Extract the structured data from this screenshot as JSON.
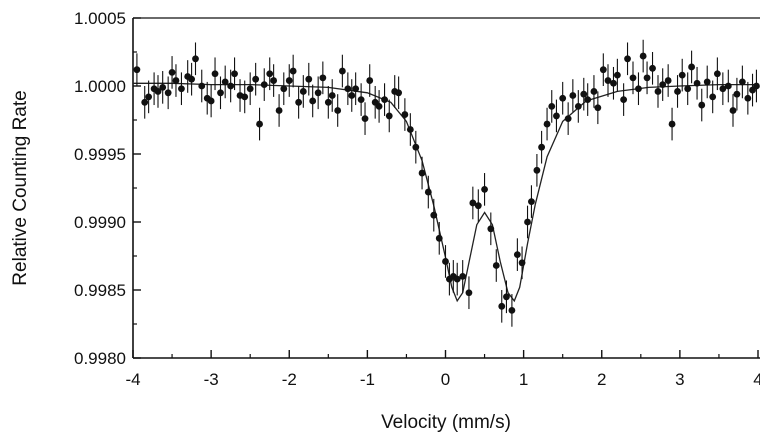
{
  "chart_data": {
    "type": "scatter",
    "xlabel": "Velocity (mm/s)",
    "ylabel": "Relative Counting Rate",
    "xlim": [
      -4,
      4
    ],
    "ylim": [
      0.998,
      1.0005
    ],
    "x_ticks": [
      -4,
      -3,
      -2,
      -1,
      0,
      1,
      2,
      3,
      4
    ],
    "x_tick_labels": [
      "-4",
      "-3",
      "-2",
      "-1",
      "0",
      "1",
      "2",
      "3",
      "4"
    ],
    "y_ticks": [
      0.998,
      0.9985,
      0.999,
      0.9995,
      1.0,
      1.0005
    ],
    "y_tick_labels": [
      "0.9980",
      "0.9985",
      "0.9990",
      "0.9995",
      "1.0000",
      "1.0005"
    ],
    "grid": false,
    "legend": "none",
    "colors": {
      "points": "#111111",
      "fit": "#222222",
      "axes": "#111111"
    },
    "series": [
      {
        "kind": "points_with_errorbars",
        "error": 0.00012,
        "points": [
          [
            -3.95,
            1.00012
          ],
          [
            -3.85,
            0.99988
          ],
          [
            -3.8,
            0.99992
          ],
          [
            -3.73,
            0.99998
          ],
          [
            -3.68,
            0.99996
          ],
          [
            -3.62,
            0.99999
          ],
          [
            -3.55,
            0.99995
          ],
          [
            -3.5,
            1.0001
          ],
          [
            -3.45,
            1.00004
          ],
          [
            -3.38,
            0.99998
          ],
          [
            -3.3,
            1.00007
          ],
          [
            -3.25,
            1.00005
          ],
          [
            -3.2,
            1.0002
          ],
          [
            -3.12,
            1.0
          ],
          [
            -3.05,
            0.99991
          ],
          [
            -3.0,
            0.99989
          ],
          [
            -2.95,
            1.00009
          ],
          [
            -2.88,
            0.99995
          ],
          [
            -2.82,
            1.00003
          ],
          [
            -2.75,
            1.0
          ],
          [
            -2.7,
            1.00009
          ],
          [
            -2.63,
            0.99993
          ],
          [
            -2.57,
            0.99992
          ],
          [
            -2.5,
            0.99998
          ],
          [
            -2.43,
            1.00005
          ],
          [
            -2.38,
            0.99972
          ],
          [
            -2.32,
            1.00001
          ],
          [
            -2.25,
            1.00009
          ],
          [
            -2.2,
            1.00004
          ],
          [
            -2.13,
            0.99982
          ],
          [
            -2.07,
            0.99998
          ],
          [
            -2.0,
            1.00004
          ],
          [
            -1.95,
            1.00011
          ],
          [
            -1.88,
            0.99988
          ],
          [
            -1.82,
            0.99996
          ],
          [
            -1.75,
            1.00005
          ],
          [
            -1.7,
            0.99989
          ],
          [
            -1.63,
            0.99995
          ],
          [
            -1.57,
            1.00006
          ],
          [
            -1.5,
            0.99988
          ],
          [
            -1.45,
            0.99993
          ],
          [
            -1.38,
            0.99982
          ],
          [
            -1.32,
            1.00011
          ],
          [
            -1.25,
            0.99998
          ],
          [
            -1.2,
            0.99993
          ],
          [
            -1.15,
            0.99998
          ],
          [
            -1.08,
            0.9999
          ],
          [
            -1.03,
            0.99976
          ],
          [
            -0.97,
            1.00004
          ],
          [
            -0.9,
            0.99988
          ],
          [
            -0.85,
            0.99985
          ],
          [
            -0.78,
            0.9999
          ],
          [
            -0.72,
            0.99978
          ],
          [
            -0.65,
            0.99996
          ],
          [
            -0.6,
            0.99995
          ],
          [
            -0.52,
            0.99979
          ],
          [
            -0.45,
            0.99968
          ],
          [
            -0.38,
            0.99955
          ],
          [
            -0.3,
            0.99936
          ],
          [
            -0.22,
            0.99922
          ],
          [
            -0.15,
            0.99905
          ],
          [
            -0.08,
            0.99888
          ],
          [
            0.0,
            0.99871
          ],
          [
            0.05,
            0.99858
          ],
          [
            0.1,
            0.9986
          ],
          [
            0.15,
            0.99858
          ],
          [
            0.22,
            0.9986
          ],
          [
            0.3,
            0.99848
          ],
          [
            0.35,
            0.99914
          ],
          [
            0.42,
            0.99912
          ],
          [
            0.5,
            0.99924
          ],
          [
            0.58,
            0.99895
          ],
          [
            0.65,
            0.99868
          ],
          [
            0.72,
            0.99838
          ],
          [
            0.78,
            0.99845
          ],
          [
            0.85,
            0.99835
          ],
          [
            0.92,
            0.99876
          ],
          [
            0.98,
            0.9987
          ],
          [
            1.05,
            0.999
          ],
          [
            1.1,
            0.99915
          ],
          [
            1.17,
            0.99938
          ],
          [
            1.23,
            0.99955
          ],
          [
            1.3,
            0.99972
          ],
          [
            1.36,
            0.99985
          ],
          [
            1.42,
            0.99978
          ],
          [
            1.5,
            0.99991
          ],
          [
            1.57,
            0.99976
          ],
          [
            1.63,
            0.99993
          ],
          [
            1.7,
            0.99985
          ],
          [
            1.77,
            0.99994
          ],
          [
            1.82,
            0.9999
          ],
          [
            1.9,
            0.99996
          ],
          [
            1.95,
            0.99984
          ],
          [
            2.02,
            1.00012
          ],
          [
            2.08,
            1.00004
          ],
          [
            2.15,
            1.00002
          ],
          [
            2.2,
            1.00008
          ],
          [
            2.28,
            0.9999
          ],
          [
            2.33,
            1.0002
          ],
          [
            2.4,
            1.00006
          ],
          [
            2.47,
            0.99998
          ],
          [
            2.53,
            1.00022
          ],
          [
            2.58,
            1.00006
          ],
          [
            2.65,
            1.00013
          ],
          [
            2.72,
            0.99996
          ],
          [
            2.78,
            1.00001
          ],
          [
            2.85,
            1.00004
          ],
          [
            2.9,
            0.99972
          ],
          [
            2.97,
            0.99996
          ],
          [
            3.03,
            1.00008
          ],
          [
            3.1,
            0.99998
          ],
          [
            3.15,
            1.00014
          ],
          [
            3.22,
            1.00002
          ],
          [
            3.28,
            0.99986
          ],
          [
            3.35,
            1.00003
          ],
          [
            3.42,
            0.99992
          ],
          [
            3.48,
            1.00009
          ],
          [
            3.55,
            0.99998
          ],
          [
            3.62,
            1.0
          ],
          [
            3.68,
            0.99982
          ],
          [
            3.73,
            0.99994
          ],
          [
            3.8,
            1.00003
          ],
          [
            3.87,
            0.99991
          ],
          [
            3.93,
            0.99997
          ],
          [
            3.98,
            1.0
          ]
        ]
      },
      {
        "kind": "fit_curve",
        "x": [
          -4.0,
          -3.5,
          -3.0,
          -2.5,
          -2.0,
          -1.5,
          -1.0,
          -0.7,
          -0.5,
          -0.3,
          -0.15,
          0.0,
          0.08,
          0.15,
          0.22,
          0.3,
          0.4,
          0.5,
          0.6,
          0.7,
          0.8,
          0.88,
          0.95,
          1.05,
          1.15,
          1.3,
          1.5,
          1.8,
          2.2,
          2.6,
          3.0,
          3.5,
          4.0
        ],
        "y": [
          1.00002,
          1.00002,
          1.00001,
          1.00001,
          1.0,
          0.99999,
          0.99995,
          0.99988,
          0.99974,
          0.99945,
          0.99912,
          0.99874,
          0.99852,
          0.99842,
          0.99848,
          0.9987,
          0.99898,
          0.99907,
          0.99898,
          0.99871,
          0.99848,
          0.99842,
          0.99852,
          0.99884,
          0.99913,
          0.99948,
          0.99974,
          0.99989,
          0.99996,
          0.99999,
          1.0,
          1.00001,
          1.00001
        ]
      }
    ]
  }
}
